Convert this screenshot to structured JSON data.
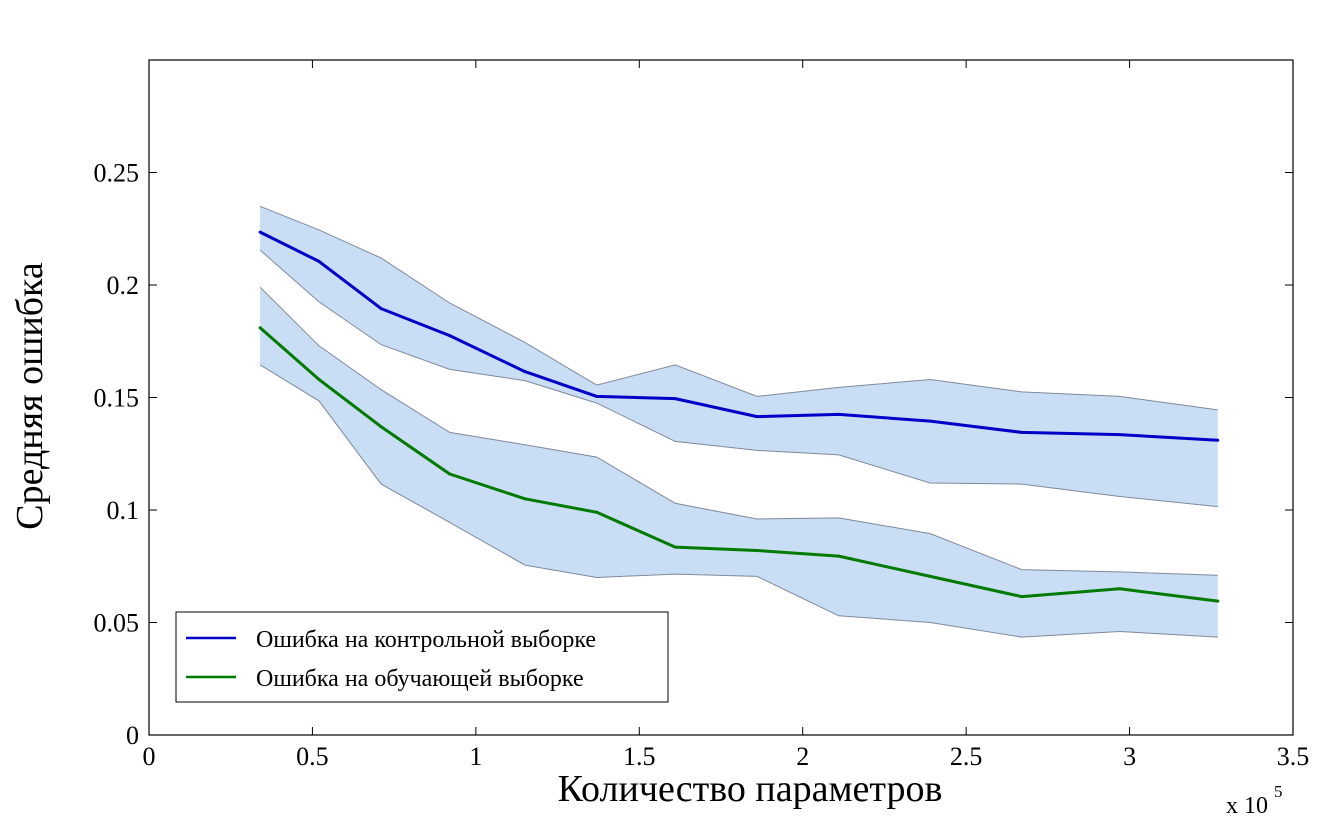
{
  "chart_data": {
    "type": "line",
    "title": "",
    "xlabel": "Количество параметров",
    "ylabel": "Средняя ошибка",
    "x_multiplier": {
      "prefix": "x 10",
      "exponent": "5"
    },
    "xlim": [
      0,
      3.5
    ],
    "ylim": [
      0,
      0.3
    ],
    "xticks": [
      0,
      0.5,
      1,
      1.5,
      2,
      2.5,
      3,
      3.5
    ],
    "xtick_labels": [
      "0",
      "0.5",
      "1",
      "1.5",
      "2",
      "2.5",
      "3",
      "3.5"
    ],
    "yticks": [
      0,
      0.05,
      0.1,
      0.15,
      0.2,
      0.25
    ],
    "ytick_labels": [
      "0",
      "0.05",
      "0.1",
      "0.15",
      "0.2",
      "0.25"
    ],
    "grid": false,
    "legend_position": "bottom-left",
    "x": [
      0.34,
      0.52,
      0.71,
      0.92,
      1.15,
      1.37,
      1.61,
      1.86,
      2.11,
      2.39,
      2.67,
      2.97,
      3.27
    ],
    "series": [
      {
        "name": "Ошибка на контрольной выборке",
        "color": "#0000C8",
        "band_color": "#C9DDF5",
        "values": [
          0.2235,
          0.2105,
          0.1895,
          0.1775,
          0.1615,
          0.1505,
          0.1495,
          0.1415,
          0.1425,
          0.1395,
          0.1345,
          0.1335,
          0.131
        ],
        "upper": [
          0.235,
          0.2245,
          0.212,
          0.192,
          0.1745,
          0.1555,
          0.1645,
          0.1505,
          0.1545,
          0.158,
          0.1525,
          0.1505,
          0.1445
        ],
        "lower": [
          0.2155,
          0.1925,
          0.1735,
          0.1625,
          0.1575,
          0.1475,
          0.1305,
          0.1265,
          0.1245,
          0.112,
          0.1115,
          0.106,
          0.1015
        ]
      },
      {
        "name": "Ошибка на обучающей выборке",
        "color": "#007A00",
        "band_color": "#C9DDF5",
        "values": [
          0.181,
          0.158,
          0.137,
          0.116,
          0.105,
          0.099,
          0.0835,
          0.082,
          0.0795,
          0.0705,
          0.0615,
          0.065,
          0.0595
        ],
        "upper": [
          0.199,
          0.173,
          0.1535,
          0.1345,
          0.129,
          0.1235,
          0.103,
          0.096,
          0.0965,
          0.0895,
          0.0735,
          0.0725,
          0.071
        ],
        "lower": [
          0.1645,
          0.1485,
          0.1115,
          0.0945,
          0.0755,
          0.07,
          0.0715,
          0.0705,
          0.053,
          0.05,
          0.0435,
          0.046,
          0.0435
        ]
      }
    ]
  }
}
